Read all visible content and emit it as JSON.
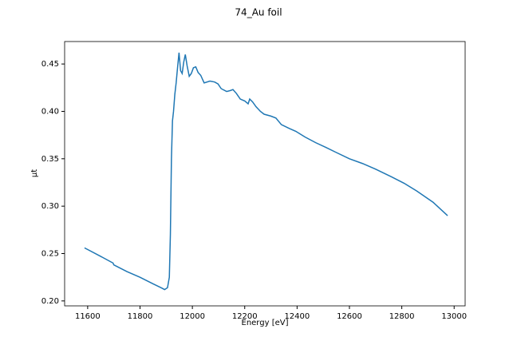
{
  "chart_data": {
    "type": "line",
    "title": "74_Au foil",
    "x_label": "Energy [eV]",
    "y_label": "μt",
    "x": [
      11588,
      11650,
      11697,
      11700,
      11750,
      11800,
      11850,
      11880,
      11894,
      11905,
      11912,
      11916,
      11920,
      11924,
      11928,
      11933,
      11938,
      11943,
      11949,
      11955,
      11961,
      11967,
      11973,
      11980,
      11988,
      11996,
      12004,
      12013,
      12022,
      12032,
      12045,
      12067,
      12085,
      12098,
      12110,
      12131,
      12145,
      12155,
      12168,
      12183,
      12200,
      12213,
      12219,
      12230,
      12243,
      12260,
      12274,
      12300,
      12319,
      12340,
      12370,
      12395,
      12430,
      12471,
      12510,
      12547,
      12600,
      12650,
      12700,
      12760,
      12810,
      12857,
      12920,
      12975
    ],
    "series": [
      {
        "name": "μt",
        "color": "#1f77b4",
        "values": [
          0.256,
          0.247,
          0.24,
          0.238,
          0.231,
          0.225,
          0.218,
          0.214,
          0.212,
          0.214,
          0.225,
          0.27,
          0.35,
          0.39,
          0.4,
          0.418,
          0.43,
          0.445,
          0.462,
          0.443,
          0.44,
          0.452,
          0.46,
          0.448,
          0.437,
          0.44,
          0.446,
          0.447,
          0.441,
          0.438,
          0.43,
          0.432,
          0.431,
          0.429,
          0.424,
          0.421,
          0.422,
          0.423,
          0.419,
          0.413,
          0.411,
          0.408,
          0.413,
          0.41,
          0.405,
          0.4,
          0.397,
          0.395,
          0.393,
          0.386,
          0.382,
          0.379,
          0.373,
          0.367,
          0.362,
          0.357,
          0.35,
          0.345,
          0.339,
          0.331,
          0.324,
          0.316,
          0.304,
          0.29
        ]
      }
    ],
    "xlim": [
      11512,
      13042
    ],
    "ylim": [
      0.1948,
      0.4737
    ],
    "xticks": [
      11600,
      11800,
      12000,
      12200,
      12400,
      12600,
      12800,
      13000
    ],
    "yticks": [
      {
        "value": 0.2,
        "label": "0.20"
      },
      0.25,
      {
        "value": 0.3,
        "label": "0.30"
      },
      0.35,
      {
        "value": 0.4,
        "label": "0.40"
      },
      0.45
    ]
  }
}
